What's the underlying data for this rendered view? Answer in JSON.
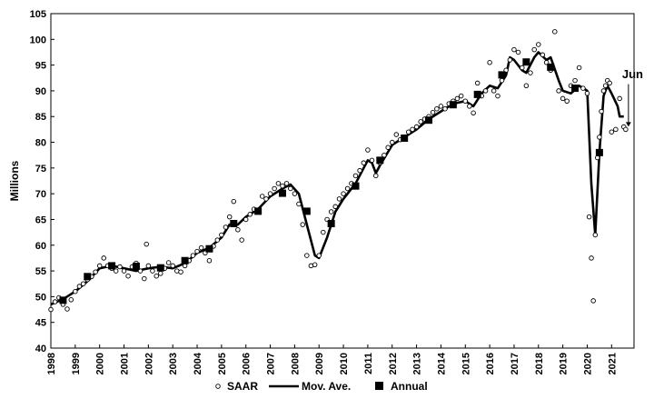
{
  "chart_data": {
    "type": "line",
    "ylabel": "Millions",
    "ylim": [
      40,
      105
    ],
    "yticks": [
      40,
      45,
      50,
      55,
      60,
      65,
      70,
      75,
      80,
      85,
      90,
      95,
      100,
      105
    ],
    "xlim": [
      1998.0,
      2021.92
    ],
    "xticks": [
      "1998",
      "1999",
      "2000",
      "2001",
      "2002",
      "2003",
      "2004",
      "2005",
      "2006",
      "2007",
      "2008",
      "2009",
      "2010",
      "2011",
      "2012",
      "2013",
      "2014",
      "2015",
      "2016",
      "2017",
      "2018",
      "2019",
      "2020",
      "2021"
    ],
    "grid": false,
    "legend_position": "bottom",
    "annotation": "Jun",
    "series": [
      {
        "name": "SAAR",
        "marker": "open-circle",
        "points": [
          [
            1998.0,
            47.5
          ],
          [
            1998.17,
            49.0
          ],
          [
            1998.33,
            49.8
          ],
          [
            1998.5,
            48.5
          ],
          [
            1998.67,
            47.6
          ],
          [
            1998.83,
            49.4
          ],
          [
            1999.0,
            51.0
          ],
          [
            1999.17,
            52.0
          ],
          [
            1999.33,
            52.5
          ],
          [
            1999.5,
            53.3
          ],
          [
            1999.67,
            53.9
          ],
          [
            1999.83,
            54.8
          ],
          [
            2000.0,
            56.0
          ],
          [
            2000.17,
            57.5
          ],
          [
            2000.33,
            56.0
          ],
          [
            2000.5,
            55.5
          ],
          [
            2000.67,
            55.0
          ],
          [
            2000.83,
            55.8
          ],
          [
            2001.0,
            55.0
          ],
          [
            2001.17,
            54.0
          ],
          [
            2001.33,
            55.8
          ],
          [
            2001.5,
            56.5
          ],
          [
            2001.67,
            55.0
          ],
          [
            2001.83,
            53.5
          ],
          [
            2001.92,
            60.2
          ],
          [
            2002.0,
            56.0
          ],
          [
            2002.17,
            55.0
          ],
          [
            2002.33,
            54.0
          ],
          [
            2002.5,
            54.5
          ],
          [
            2002.67,
            55.5
          ],
          [
            2002.83,
            56.6
          ],
          [
            2003.0,
            56.0
          ],
          [
            2003.17,
            55.0
          ],
          [
            2003.33,
            54.8
          ],
          [
            2003.5,
            56.0
          ],
          [
            2003.67,
            57.0
          ],
          [
            2003.83,
            58.0
          ],
          [
            2004.0,
            58.8
          ],
          [
            2004.17,
            59.5
          ],
          [
            2004.33,
            58.5
          ],
          [
            2004.5,
            57.0
          ],
          [
            2004.67,
            59.8
          ],
          [
            2004.83,
            61.0
          ],
          [
            2005.0,
            62.0
          ],
          [
            2005.17,
            63.5
          ],
          [
            2005.33,
            65.5
          ],
          [
            2005.5,
            68.5
          ],
          [
            2005.67,
            63.0
          ],
          [
            2005.83,
            61.0
          ],
          [
            2006.0,
            65.0
          ],
          [
            2006.17,
            66.0
          ],
          [
            2006.33,
            67.0
          ],
          [
            2006.5,
            66.5
          ],
          [
            2006.67,
            69.5
          ],
          [
            2006.83,
            69.0
          ],
          [
            2007.0,
            70.0
          ],
          [
            2007.17,
            71.0
          ],
          [
            2007.33,
            72.0
          ],
          [
            2007.5,
            71.5
          ],
          [
            2007.67,
            72.0
          ],
          [
            2007.83,
            71.0
          ],
          [
            2008.0,
            70.0
          ],
          [
            2008.17,
            68.0
          ],
          [
            2008.33,
            64.0
          ],
          [
            2008.5,
            58.0
          ],
          [
            2008.67,
            56.0
          ],
          [
            2008.83,
            56.2
          ],
          [
            2009.0,
            58.0
          ],
          [
            2009.17,
            62.5
          ],
          [
            2009.33,
            65.0
          ],
          [
            2009.5,
            66.5
          ],
          [
            2009.67,
            67.5
          ],
          [
            2009.83,
            69.0
          ],
          [
            2010.0,
            70.0
          ],
          [
            2010.17,
            71.0
          ],
          [
            2010.33,
            72.0
          ],
          [
            2010.5,
            73.5
          ],
          [
            2010.67,
            74.5
          ],
          [
            2010.83,
            76.0
          ],
          [
            2011.0,
            78.5
          ],
          [
            2011.17,
            76.5
          ],
          [
            2011.33,
            73.5
          ],
          [
            2011.5,
            76.0
          ],
          [
            2011.67,
            77.5
          ],
          [
            2011.83,
            79.0
          ],
          [
            2012.0,
            80.0
          ],
          [
            2012.17,
            81.5
          ],
          [
            2012.33,
            80.5
          ],
          [
            2012.5,
            81.0
          ],
          [
            2012.67,
            82.0
          ],
          [
            2012.83,
            82.5
          ],
          [
            2013.0,
            83.0
          ],
          [
            2013.17,
            84.0
          ],
          [
            2013.33,
            84.5
          ],
          [
            2013.5,
            85.0
          ],
          [
            2013.67,
            85.8
          ],
          [
            2013.83,
            86.5
          ],
          [
            2014.0,
            87.0
          ],
          [
            2014.17,
            86.5
          ],
          [
            2014.33,
            87.5
          ],
          [
            2014.5,
            88.0
          ],
          [
            2014.67,
            88.5
          ],
          [
            2014.83,
            89.0
          ],
          [
            2015.0,
            88.0
          ],
          [
            2015.17,
            87.0
          ],
          [
            2015.33,
            85.7
          ],
          [
            2015.5,
            91.5
          ],
          [
            2015.67,
            89.0
          ],
          [
            2015.83,
            90.0
          ],
          [
            2016.0,
            95.5
          ],
          [
            2016.17,
            90.0
          ],
          [
            2016.33,
            89.0
          ],
          [
            2016.5,
            92.0
          ],
          [
            2016.67,
            94.0
          ],
          [
            2016.83,
            96.0
          ],
          [
            2017.0,
            98.0
          ],
          [
            2017.17,
            97.5
          ],
          [
            2017.33,
            94.5
          ],
          [
            2017.5,
            91.0
          ],
          [
            2017.67,
            93.5
          ],
          [
            2017.83,
            98.0
          ],
          [
            2018.0,
            99.0
          ],
          [
            2018.17,
            97.0
          ],
          [
            2018.33,
            95.5
          ],
          [
            2018.5,
            94.0
          ],
          [
            2018.67,
            101.5
          ],
          [
            2018.83,
            90.0
          ],
          [
            2019.0,
            88.5
          ],
          [
            2019.17,
            88.0
          ],
          [
            2019.33,
            91.0
          ],
          [
            2019.5,
            92.0
          ],
          [
            2019.67,
            94.5
          ],
          [
            2019.83,
            90.5
          ],
          [
            2020.0,
            89.5
          ],
          [
            2020.08,
            65.5
          ],
          [
            2020.17,
            57.5
          ],
          [
            2020.25,
            49.2
          ],
          [
            2020.33,
            62.0
          ],
          [
            2020.42,
            77.0
          ],
          [
            2020.5,
            81.0
          ],
          [
            2020.58,
            86.0
          ],
          [
            2020.67,
            90.0
          ],
          [
            2020.75,
            91.0
          ],
          [
            2020.83,
            92.0
          ],
          [
            2020.92,
            91.5
          ],
          [
            2021.0,
            82.0
          ],
          [
            2021.17,
            82.5
          ],
          [
            2021.33,
            88.5
          ],
          [
            2021.5,
            83.0
          ],
          [
            2021.58,
            82.5
          ]
        ]
      },
      {
        "name": "Mov. Ave.",
        "marker": "line",
        "points": [
          [
            1998.0,
            48.5
          ],
          [
            1998.5,
            49.5
          ],
          [
            1999.0,
            51.0
          ],
          [
            1999.5,
            53.0
          ],
          [
            2000.0,
            55.5
          ],
          [
            2000.5,
            56.0
          ],
          [
            2001.0,
            55.5
          ],
          [
            2001.5,
            55.0
          ],
          [
            2002.0,
            55.5
          ],
          [
            2002.5,
            55.8
          ],
          [
            2003.0,
            55.5
          ],
          [
            2003.5,
            56.5
          ],
          [
            2004.0,
            58.5
          ],
          [
            2004.5,
            59.5
          ],
          [
            2005.0,
            61.5
          ],
          [
            2005.33,
            64.0
          ],
          [
            2005.67,
            64.0
          ],
          [
            2006.0,
            65.5
          ],
          [
            2006.5,
            67.0
          ],
          [
            2007.0,
            69.5
          ],
          [
            2007.5,
            71.0
          ],
          [
            2007.83,
            71.8
          ],
          [
            2008.17,
            70.0
          ],
          [
            2008.5,
            64.0
          ],
          [
            2008.83,
            58.0
          ],
          [
            2009.0,
            57.5
          ],
          [
            2009.33,
            61.5
          ],
          [
            2009.67,
            66.5
          ],
          [
            2010.0,
            69.0
          ],
          [
            2010.5,
            72.0
          ],
          [
            2010.83,
            75.0
          ],
          [
            2011.0,
            76.5
          ],
          [
            2011.17,
            76.0
          ],
          [
            2011.33,
            74.0
          ],
          [
            2011.5,
            75.5
          ],
          [
            2012.0,
            79.5
          ],
          [
            2012.5,
            81.0
          ],
          [
            2013.0,
            82.5
          ],
          [
            2013.5,
            84.5
          ],
          [
            2014.0,
            86.0
          ],
          [
            2014.5,
            87.5
          ],
          [
            2015.0,
            88.0
          ],
          [
            2015.33,
            87.0
          ],
          [
            2015.67,
            89.5
          ],
          [
            2016.0,
            91.0
          ],
          [
            2016.33,
            90.5
          ],
          [
            2016.67,
            93.0
          ],
          [
            2016.83,
            96.5
          ],
          [
            2017.0,
            96.0
          ],
          [
            2017.33,
            94.0
          ],
          [
            2017.5,
            93.5
          ],
          [
            2017.83,
            96.5
          ],
          [
            2018.0,
            97.5
          ],
          [
            2018.33,
            96.0
          ],
          [
            2018.5,
            96.5
          ],
          [
            2018.83,
            92.0
          ],
          [
            2019.0,
            90.0
          ],
          [
            2019.33,
            89.5
          ],
          [
            2019.67,
            91.0
          ],
          [
            2020.0,
            90.0
          ],
          [
            2020.17,
            72.0
          ],
          [
            2020.33,
            62.0
          ],
          [
            2020.5,
            78.0
          ],
          [
            2020.67,
            89.0
          ],
          [
            2020.83,
            91.0
          ],
          [
            2021.0,
            89.5
          ],
          [
            2021.25,
            87.0
          ],
          [
            2021.33,
            85.0
          ],
          [
            2021.5,
            85.0
          ]
        ]
      },
      {
        "name": "Annual",
        "marker": "filled-square",
        "points": [
          [
            1998.5,
            49.3
          ],
          [
            1999.5,
            53.9
          ],
          [
            2000.5,
            56.0
          ],
          [
            2001.5,
            55.9
          ],
          [
            2002.5,
            55.6
          ],
          [
            2003.5,
            57.0
          ],
          [
            2004.5,
            59.3
          ],
          [
            2005.5,
            64.2
          ],
          [
            2006.5,
            66.6
          ],
          [
            2007.5,
            70.1
          ],
          [
            2008.5,
            66.6
          ],
          [
            2009.5,
            64.2
          ],
          [
            2010.5,
            71.5
          ],
          [
            2011.5,
            76.5
          ],
          [
            2012.5,
            80.8
          ],
          [
            2013.5,
            84.3
          ],
          [
            2014.5,
            87.3
          ],
          [
            2015.5,
            89.3
          ],
          [
            2016.5,
            93.1
          ],
          [
            2017.5,
            95.6
          ],
          [
            2018.5,
            94.6
          ],
          [
            2019.5,
            90.5
          ],
          [
            2020.5,
            78.0
          ]
        ]
      }
    ]
  }
}
